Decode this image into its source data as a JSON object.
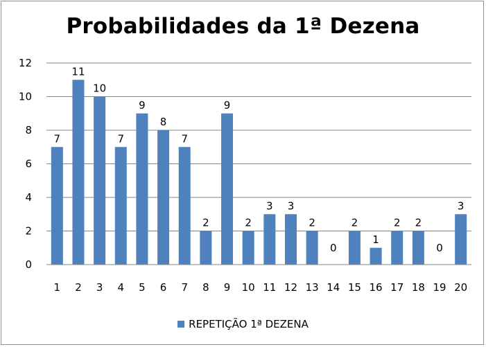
{
  "chart_data": {
    "type": "bar",
    "title": "Probabilidades da 1ª Dezena",
    "categories": [
      "1",
      "2",
      "3",
      "4",
      "5",
      "6",
      "7",
      "8",
      "9",
      "10",
      "11",
      "12",
      "13",
      "14",
      "15",
      "16",
      "17",
      "18",
      "19",
      "20"
    ],
    "series": [
      {
        "name": "REPETIÇÃO 1ª DEZENA",
        "values": [
          7,
          11,
          10,
          7,
          9,
          8,
          7,
          2,
          9,
          2,
          3,
          3,
          2,
          0,
          2,
          1,
          2,
          2,
          0,
          3
        ],
        "color": "#4f81bd"
      }
    ],
    "ylim": [
      0,
      12
    ],
    "yticks": [
      0,
      2,
      4,
      6,
      8,
      10,
      12
    ],
    "grid": true,
    "legend_position": "bottom",
    "data_labels": true
  }
}
